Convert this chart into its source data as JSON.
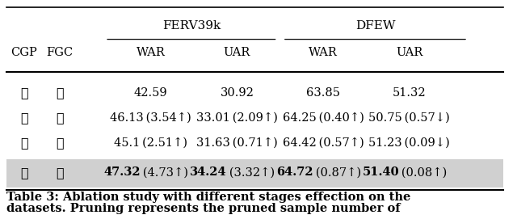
{
  "title_caption": "Table 3: Ablation study with different stages effection on the",
  "subtitle_caption": "datasets. Pruning represents the pruned sample number of",
  "col_groups": [
    {
      "label": "FERV39k",
      "cols": [
        2,
        3
      ]
    },
    {
      "label": "DFEW",
      "cols": [
        4,
        5
      ]
    }
  ],
  "header_row1": [
    "CGP",
    "FGC",
    "WAR",
    "UAR",
    "WAR",
    "UAR"
  ],
  "rows": [
    {
      "cgp": "✗",
      "fgc": "✗",
      "ferv_war": "42.59",
      "ferv_uar": "30.92",
      "dfew_war": "63.85",
      "dfew_uar": "51.32",
      "bold": false,
      "highlight": false
    },
    {
      "cgp": "✓",
      "fgc": "✗",
      "ferv_war": "46.13 (3.54↑)",
      "ferv_uar": "33.01 (2.09↑)",
      "dfew_war": "64.25 (0.40↑)",
      "dfew_uar": "50.75 (0.57↓)",
      "bold": false,
      "highlight": false
    },
    {
      "cgp": "✗",
      "fgc": "✓",
      "ferv_war": "45.1 (2.51↑)",
      "ferv_uar": "31.63 (0.71↑)",
      "dfew_war": "64.42 (0.57↑)",
      "dfew_uar": "51.23 (0.09↓)",
      "bold": false,
      "highlight": false
    },
    {
      "cgp": "✓",
      "fgc": "✓",
      "ferv_war_bold": "47.32",
      "ferv_war_plain": " (4.73↑)",
      "ferv_uar_bold": "34.24",
      "ferv_uar_plain": " (3.32↑)",
      "dfew_war_bold": "64.72",
      "dfew_war_plain": " (0.87↑)",
      "dfew_uar_bold": "51.40",
      "dfew_uar_plain": " (0.08↑)",
      "bold": true,
      "highlight": true
    }
  ],
  "highlight_color": "#d0d0d0",
  "background_color": "#ffffff",
  "font_size": 10.5,
  "caption_fontsize": 10.5
}
